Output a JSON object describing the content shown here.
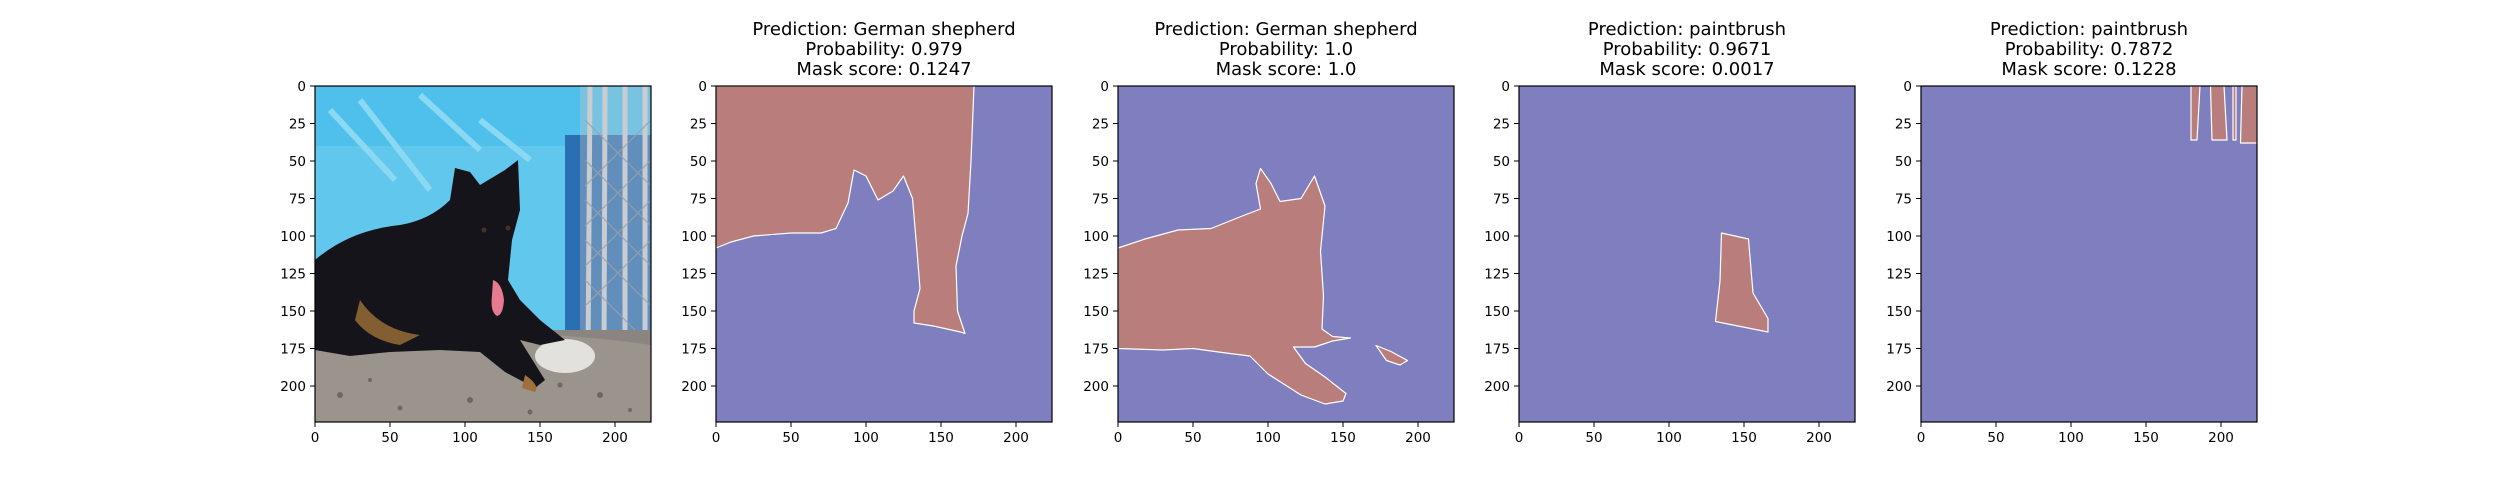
{
  "chart_data": {
    "type": "image-grid",
    "x_ticks": [
      0,
      50,
      100,
      150,
      200
    ],
    "y_ticks": [
      0,
      25,
      50,
      75,
      100,
      125,
      150,
      175,
      200
    ],
    "x_range": [
      0,
      224
    ],
    "y_range": [
      0,
      224
    ],
    "colors": {
      "mask": "#b97e7b",
      "background": "#7f7fbf",
      "axis": "#000000",
      "photo_sky": "#62c7ec",
      "photo_ground": "#8a8580",
      "photo_dog": "#14141a",
      "photo_fence": "#c7c9cc"
    },
    "panels": [
      {
        "kind": "photo",
        "image": "dog-photo",
        "title": [
          "",
          "",
          ""
        ]
      },
      {
        "kind": "mask",
        "title": [
          "Prediction: German shepherd",
          "Probability: 0.979",
          "Mask score: 0.1247"
        ],
        "prediction": "German shepherd",
        "probability": 0.979,
        "mask_score": 0.1247,
        "mask_polygons": [
          [
            [
              0,
              0
            ],
            [
              172,
              0
            ],
            [
              170,
              50
            ],
            [
              168,
              85
            ],
            [
              164,
              100
            ],
            [
              160,
              120
            ],
            [
              161,
              150
            ],
            [
              166,
              165
            ],
            [
              163,
              164
            ],
            [
              145,
              160
            ],
            [
              132,
              158
            ],
            [
              132,
              150
            ],
            [
              136,
              135
            ],
            [
              134,
              110
            ],
            [
              131,
              75
            ],
            [
              125,
              60
            ],
            [
              118,
              70
            ],
            [
              108,
              76
            ],
            [
              100,
              60
            ],
            [
              92,
              56
            ],
            [
              88,
              78
            ],
            [
              80,
              95
            ],
            [
              70,
              98
            ],
            [
              50,
              98
            ],
            [
              25,
              100
            ],
            [
              10,
              104
            ],
            [
              0,
              108
            ]
          ]
        ]
      },
      {
        "kind": "mask",
        "title": [
          "Prediction: German shepherd",
          "Probability: 1.0",
          "Mask score: 1.0"
        ],
        "prediction": "German shepherd",
        "probability": 1.0,
        "mask_score": 1.0,
        "mask_polygons": [
          [
            [
              0,
              108
            ],
            [
              18,
              102
            ],
            [
              40,
              96
            ],
            [
              62,
              95
            ],
            [
              82,
              87
            ],
            [
              95,
              82
            ],
            [
              92,
              65
            ],
            [
              95,
              55
            ],
            [
              102,
              65
            ],
            [
              108,
              77
            ],
            [
              122,
              75
            ],
            [
              131,
              60
            ],
            [
              138,
              80
            ],
            [
              135,
              110
            ],
            [
              137,
              140
            ],
            [
              136,
              162
            ],
            [
              143,
              167
            ],
            [
              155,
              168
            ],
            [
              143,
              170
            ],
            [
              131,
              174
            ],
            [
              117,
              174
            ],
            [
              125,
              185
            ],
            [
              138,
              194
            ],
            [
              152,
              205
            ],
            [
              150,
              210
            ],
            [
              138,
              212
            ],
            [
              122,
              206
            ],
            [
              100,
              192
            ],
            [
              88,
              180
            ],
            [
              72,
              178
            ],
            [
              50,
              175
            ],
            [
              30,
              176
            ],
            [
              0,
              175
            ]
          ],
          [
            [
              172,
              173
            ],
            [
              182,
              177
            ],
            [
              193,
              183
            ],
            [
              188,
              186
            ],
            [
              179,
              183
            ]
          ]
        ]
      },
      {
        "kind": "mask",
        "title": [
          "Prediction: paintbrush",
          "Probability: 0.9671",
          "Mask score: 0.0017"
        ],
        "prediction": "paintbrush",
        "probability": 0.9671,
        "mask_score": 0.0017,
        "mask_polygons": [
          [
            [
              135,
              98
            ],
            [
              153,
              102
            ],
            [
              156,
              138
            ],
            [
              166,
              155
            ],
            [
              166,
              164
            ],
            [
              131,
              157
            ],
            [
              134,
              130
            ]
          ]
        ]
      },
      {
        "kind": "mask",
        "title": [
          "Prediction: paintbrush",
          "Probability: 0.7872",
          "Mask score: 0.1228"
        ],
        "prediction": "paintbrush",
        "probability": 0.7872,
        "mask_score": 0.1228,
        "mask_polygons": [
          [
            [
              180,
              0
            ],
            [
              186,
              0
            ],
            [
              184,
              36
            ],
            [
              180,
              36
            ]
          ],
          [
            [
              193,
              0
            ],
            [
              202,
              0
            ],
            [
              204,
              36
            ],
            [
              194,
              36
            ]
          ],
          [
            [
              208,
              0
            ],
            [
              210,
              0
            ],
            [
              210,
              36
            ],
            [
              208,
              36
            ]
          ],
          [
            [
              214,
              0
            ],
            [
              224,
              0
            ],
            [
              224,
              38
            ],
            [
              213,
              38
            ]
          ]
        ]
      }
    ]
  }
}
